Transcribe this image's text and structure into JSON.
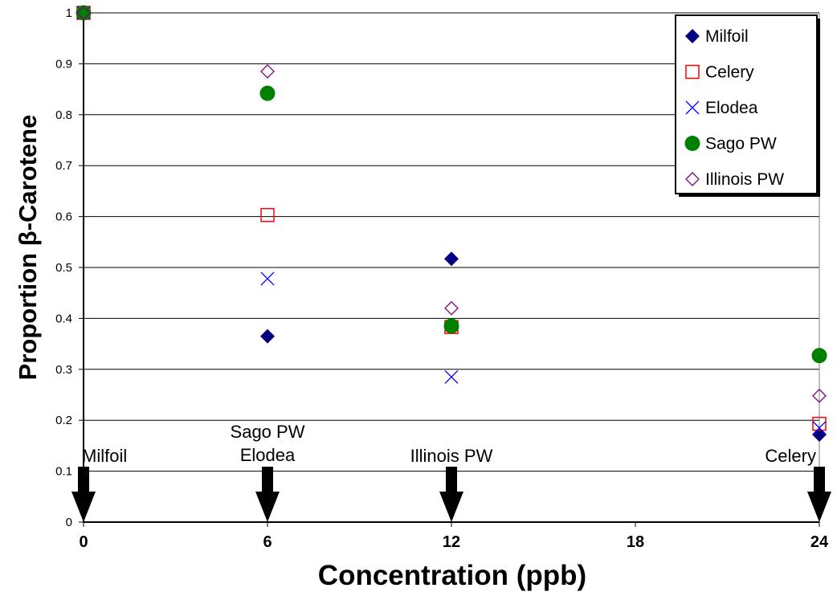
{
  "chart_data": {
    "type": "scatter",
    "title": "",
    "xlabel": "Concentration (ppb)",
    "ylabel": "Proportion β-Carotene",
    "xlim": [
      0,
      24
    ],
    "ylim": [
      0,
      1
    ],
    "x_ticks": [
      "0",
      "6",
      "12",
      "18",
      "24"
    ],
    "y_ticks": [
      "0",
      "0.1",
      "0.2",
      "0.3",
      "0.4",
      "0.5",
      "0.6",
      "0.7",
      "0.8",
      "0.9",
      "1"
    ],
    "grid": "horizontal",
    "legend_position": "top-right",
    "series": [
      {
        "name": "Milfoil",
        "marker": "filled-diamond",
        "color": "#000080",
        "x": [
          0,
          6,
          12,
          24
        ],
        "y": [
          1.0,
          0.365,
          0.517,
          0.172
        ]
      },
      {
        "name": "Celery",
        "marker": "open-square",
        "color": "#FF0000",
        "x": [
          0,
          6,
          12,
          24
        ],
        "y": [
          1.0,
          0.603,
          0.383,
          0.193
        ]
      },
      {
        "name": "Elodea",
        "marker": "x",
        "color": "#0000FF",
        "x": [
          0,
          6,
          12,
          24
        ],
        "y": [
          1.0,
          0.478,
          0.285,
          0.185
        ]
      },
      {
        "name": "Sago PW",
        "marker": "filled-circle",
        "color": "#008000",
        "x": [
          0,
          6,
          12,
          24
        ],
        "y": [
          1.0,
          0.842,
          0.385,
          0.327
        ]
      },
      {
        "name": "Illinois PW",
        "marker": "open-diamond",
        "color": "#800080",
        "x": [
          0,
          6,
          12,
          24
        ],
        "y": [
          1.0,
          0.885,
          0.42,
          0.248
        ]
      }
    ],
    "annotations": [
      {
        "x": 0,
        "lines": [
          "Milfoil"
        ]
      },
      {
        "x": 6,
        "lines": [
          "Sago PW",
          "Elodea"
        ]
      },
      {
        "x": 12,
        "lines": [
          "Illinois PW"
        ]
      },
      {
        "x": 24,
        "lines": [
          "Celery"
        ]
      }
    ]
  }
}
